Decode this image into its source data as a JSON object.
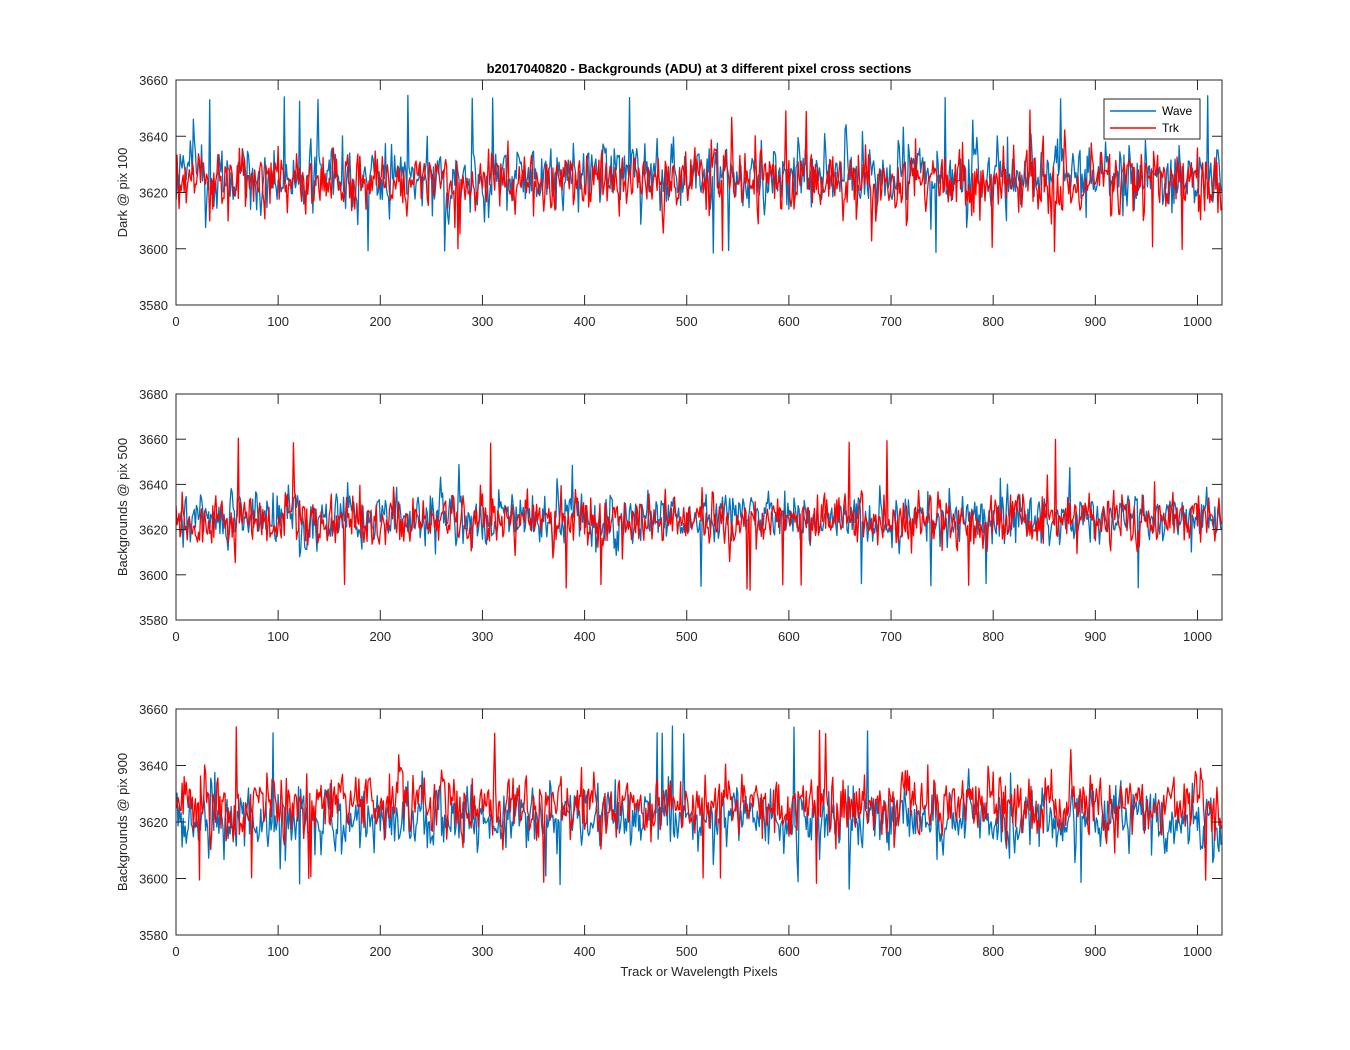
{
  "figure": {
    "title": "b2017040820 - Backgrounds (ADU) at 3 different pixel cross sections",
    "xlabel": "Track or Wavelength Pixels"
  },
  "legend": {
    "placement": "top-right",
    "entries": [
      {
        "name": "Wave",
        "color": "#0072BD"
      },
      {
        "name": "Trk",
        "color": "#FF0000"
      }
    ]
  },
  "chart_data": [
    {
      "type": "line",
      "title": "b2017040820 - Backgrounds (ADU) at 3 different pixel cross sections",
      "xlabel": "",
      "ylabel": "Dark @ pix 100",
      "xlim": [
        0,
        1024
      ],
      "ylim": [
        3580,
        3660
      ],
      "xticks": [
        0,
        100,
        200,
        300,
        400,
        500,
        600,
        700,
        800,
        900,
        1000
      ],
      "yticks": [
        3580,
        3600,
        3620,
        3640,
        3660
      ],
      "x_range": [
        0,
        1023
      ],
      "series": [
        {
          "name": "Wave",
          "color": "#0072BD",
          "mean": 3626,
          "spread": 7.5,
          "min": 3598,
          "max": 3655,
          "seed": 101
        },
        {
          "name": "Trk",
          "color": "#FF0000",
          "mean": 3624,
          "spread": 7.5,
          "min": 3598,
          "max": 3650,
          "seed": 202
        }
      ]
    },
    {
      "type": "line",
      "title": "",
      "xlabel": "",
      "ylabel": "Backgrounds @ pix 500",
      "xlim": [
        0,
        1024
      ],
      "ylim": [
        3580,
        3680
      ],
      "xticks": [
        0,
        100,
        200,
        300,
        400,
        500,
        600,
        700,
        800,
        900,
        1000
      ],
      "yticks": [
        3580,
        3600,
        3620,
        3640,
        3660,
        3680
      ],
      "x_range": [
        0,
        1023
      ],
      "series": [
        {
          "name": "Wave",
          "color": "#0072BD",
          "mean": 3625,
          "spread": 7.5,
          "min": 3594,
          "max": 3650,
          "seed": 303
        },
        {
          "name": "Trk",
          "color": "#FF0000",
          "mean": 3624,
          "spread": 7.5,
          "min": 3593,
          "max": 3661,
          "seed": 404
        }
      ]
    },
    {
      "type": "line",
      "title": "",
      "xlabel": "Track or Wavelength Pixels",
      "ylabel": "Backgrounds @ pix 900",
      "xlim": [
        0,
        1024
      ],
      "ylim": [
        3580,
        3660
      ],
      "xticks": [
        0,
        100,
        200,
        300,
        400,
        500,
        600,
        700,
        800,
        900,
        1000
      ],
      "yticks": [
        3580,
        3600,
        3620,
        3640,
        3660
      ],
      "x_range": [
        0,
        1023
      ],
      "series": [
        {
          "name": "Wave",
          "color": "#0072BD",
          "mean": 3621,
          "spread": 7.5,
          "min": 3596,
          "max": 3654,
          "seed": 505
        },
        {
          "name": "Trk",
          "color": "#FF0000",
          "mean": 3626,
          "spread": 7.5,
          "min": 3598,
          "max": 3654,
          "seed": 606
        }
      ]
    }
  ]
}
